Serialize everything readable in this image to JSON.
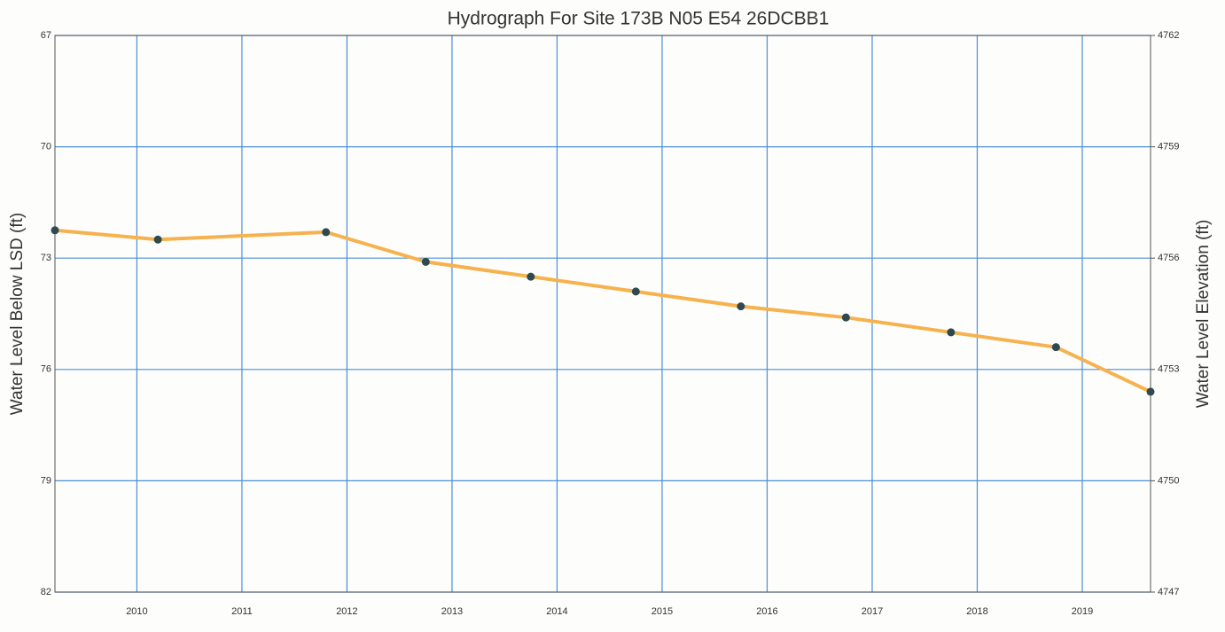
{
  "chart_data": {
    "type": "line",
    "title": "Hydrograph For Site 173B N05 E54 26DCBB1",
    "y_label": "Water Level Below LSD (ft)",
    "y2_label": "Water Level Elevation (ft)",
    "x": [
      2009.22,
      2010.2,
      2011.8,
      2012.75,
      2013.75,
      2014.75,
      2015.75,
      2016.75,
      2017.75,
      2018.75,
      2019.65
    ],
    "series": [
      {
        "values": [
          72.25,
          72.5,
          72.3,
          73.1,
          73.5,
          73.9,
          74.3,
          74.6,
          75.0,
          75.4,
          76.6
        ],
        "color": "#f6b24e",
        "marker_color": "#2e4a4f"
      }
    ],
    "xlim": [
      2009.22,
      2019.65
    ],
    "xticks": [
      2010,
      2011,
      2012,
      2013,
      2014,
      2015,
      2016,
      2017,
      2018,
      2019
    ],
    "ylim": [
      82,
      67
    ],
    "yticks": [
      67,
      70,
      73,
      76,
      79,
      82
    ],
    "y2lim": [
      4747,
      4762
    ],
    "y2ticks": [
      4762,
      4759,
      4756,
      4753,
      4750,
      4747
    ],
    "grid": true,
    "grid_color": "#4a8fd6"
  }
}
